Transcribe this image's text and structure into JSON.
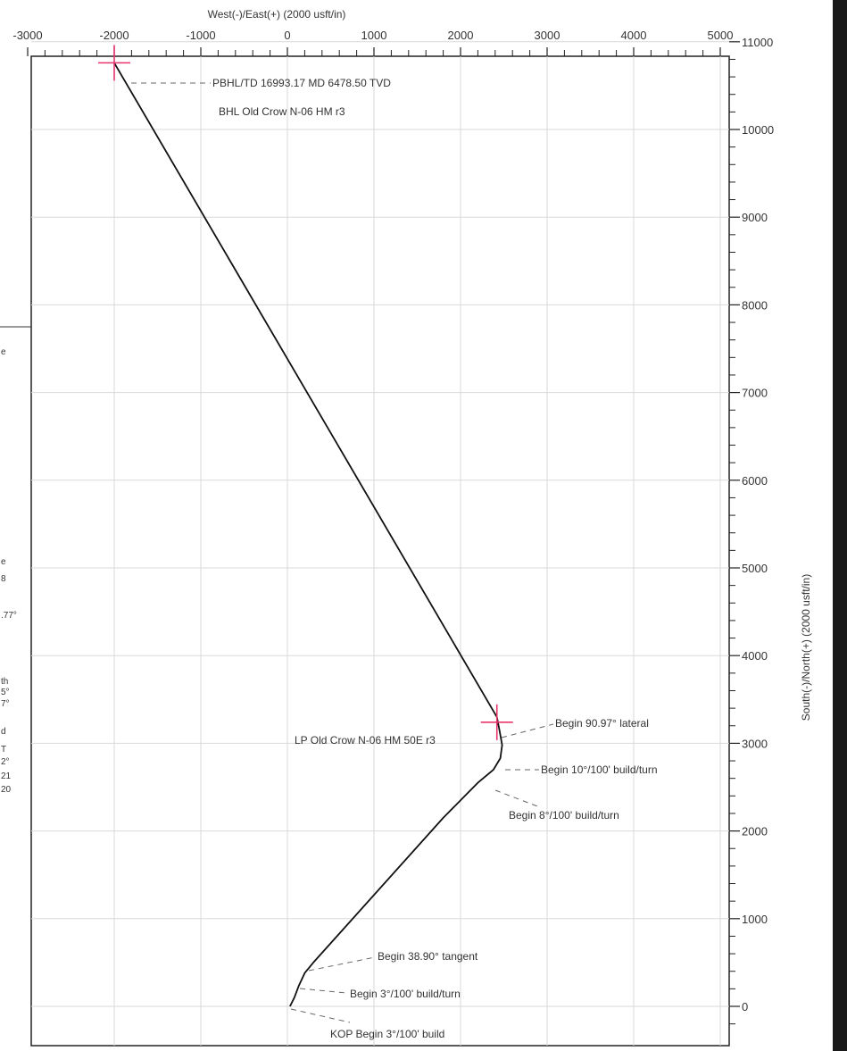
{
  "chart_data": {
    "type": "line",
    "xlabel": "West(-)/East(+) (2000 usft/in)",
    "ylabel": "South(-)/North(+) (2000 usft/in)",
    "xlim": [
      -3000,
      5000
    ],
    "ylim": [
      -300,
      11000
    ],
    "x_ticks": [
      "-3000",
      "-2000",
      "-1000",
      "0",
      "1000",
      "2000",
      "3000",
      "4000",
      "5000"
    ],
    "y_ticks": [
      "11000",
      "10000",
      "9000",
      "8000",
      "7000",
      "6000",
      "5000",
      "4000",
      "3000",
      "2000",
      "1000",
      "0"
    ],
    "grid": true,
    "series": [
      {
        "color": "#111111",
        "points": [
          [
            30,
            0
          ],
          [
            80,
            100
          ],
          [
            130,
            230
          ],
          [
            200,
            380
          ],
          [
            300,
            500
          ],
          [
            1800,
            2150
          ],
          [
            2200,
            2550
          ],
          [
            2380,
            2700
          ],
          [
            2460,
            2830
          ],
          [
            2480,
            2980
          ],
          [
            2450,
            3150
          ],
          [
            2420,
            3300
          ],
          [
            -2000,
            10760
          ]
        ]
      }
    ],
    "targets": [
      {
        "color": "#e8336b",
        "x": -2000,
        "y": 10760
      },
      {
        "color": "#e8336b",
        "x": 2420,
        "y": 3240
      }
    ],
    "annotations": [
      {
        "text": "PBHL/TD 16993.17 MD 6478.50 TVD",
        "at": [
          -2000,
          10760
        ]
      },
      {
        "text": "BHL Old Crow N-06 HM r3",
        "at": [
          -2000,
          10760
        ]
      },
      {
        "text": "Begin 90.97° lateral",
        "at": [
          2420,
          3240
        ]
      },
      {
        "text": "LP Old Crow N-06 HM 50E r3",
        "at": [
          2420,
          3240
        ]
      },
      {
        "text": "Begin 10°/100' build/turn",
        "at": [
          2480,
          2790
        ]
      },
      {
        "text": "Begin 8°/100' build/turn",
        "at": [
          2380,
          2610
        ]
      },
      {
        "text": "Begin 38.90° tangent",
        "at": [
          240,
          430
        ]
      },
      {
        "text": "Begin 3°/100' build/turn",
        "at": [
          100,
          190
        ]
      },
      {
        "text": "KOP Begin 3°/100' build",
        "at": [
          30,
          0
        ]
      }
    ]
  },
  "left_fragments": [
    "e",
    "e",
    "8",
    ".77°",
    "th",
    "5°",
    "7°",
    "d",
    "T",
    "2°",
    "21",
    "20"
  ]
}
